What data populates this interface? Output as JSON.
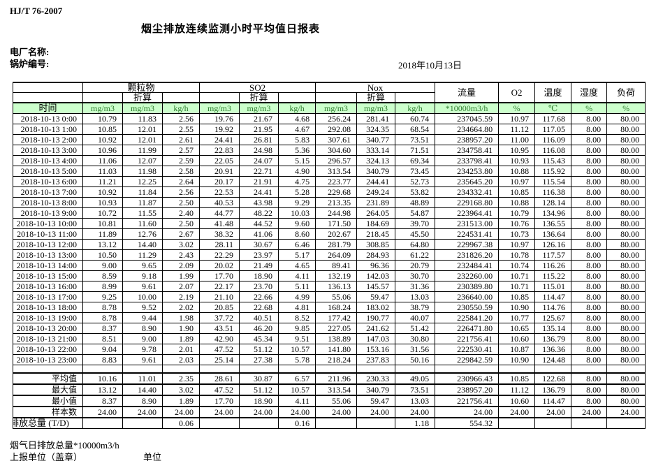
{
  "page": {
    "standard": "HJ/T  76-2007",
    "title": "烟尘排放连续监测小时平均值日报表",
    "plant_label": "电厂名称:",
    "boiler_label": "锅炉编号:",
    "date": "2018年10月13日",
    "footnote": "烟气日排放总量*10000m3/h",
    "report_unit_label": "上报单位（盖章）",
    "unit_label": "单位"
  },
  "colors": {
    "header_green_bg": "#ccffcc",
    "header_green_text": "#2e7d2e",
    "border": "#000000"
  },
  "table": {
    "columns": {
      "time": "时间",
      "converted_label": "折算",
      "groups": [
        {
          "label": "颗粒物"
        },
        {
          "label": "SO2"
        },
        {
          "label": "Nox"
        }
      ],
      "group_units": [
        "mg/m3",
        "mg/m3",
        "kg/h"
      ],
      "flow": {
        "label": "流量",
        "unit": "*10000m3/h"
      },
      "o2": {
        "label": "O2",
        "unit": "%"
      },
      "temperature": {
        "label": "温度",
        "unit": "℃"
      },
      "humidity": {
        "label": "湿度",
        "unit": "%"
      },
      "load": {
        "label": "负荷",
        "unit": "%"
      }
    },
    "rows": [
      {
        "time": "2018-10-13 0:00",
        "values": [
          "10.79",
          "11.83",
          "2.56",
          "19.76",
          "21.67",
          "4.68",
          "256.24",
          "281.41",
          "60.74",
          "237045.59",
          "10.97",
          "117.68",
          "8.00",
          "80.00"
        ]
      },
      {
        "time": "2018-10-13 1:00",
        "values": [
          "10.85",
          "12.01",
          "2.55",
          "19.92",
          "21.95",
          "4.67",
          "292.08",
          "324.35",
          "68.54",
          "234664.80",
          "11.12",
          "117.05",
          "8.00",
          "80.00"
        ]
      },
      {
        "time": "2018-10-13 2:00",
        "values": [
          "10.92",
          "12.01",
          "2.61",
          "24.41",
          "26.81",
          "5.83",
          "307.61",
          "340.77",
          "73.51",
          "238957.20",
          "11.00",
          "116.09",
          "8.00",
          "80.00"
        ]
      },
      {
        "time": "2018-10-13 3:00",
        "values": [
          "10.96",
          "11.99",
          "2.57",
          "22.83",
          "24.98",
          "5.36",
          "304.60",
          "333.14",
          "71.51",
          "234758.41",
          "10.95",
          "116.08",
          "8.00",
          "80.00"
        ]
      },
      {
        "time": "2018-10-13 4:00",
        "values": [
          "11.06",
          "12.07",
          "2.59",
          "22.05",
          "24.07",
          "5.15",
          "296.57",
          "324.13",
          "69.34",
          "233798.41",
          "10.93",
          "115.43",
          "8.00",
          "80.00"
        ]
      },
      {
        "time": "2018-10-13 5:00",
        "values": [
          "11.03",
          "11.98",
          "2.58",
          "20.91",
          "22.71",
          "4.90",
          "313.54",
          "340.79",
          "73.45",
          "234253.80",
          "10.88",
          "115.92",
          "8.00",
          "80.00"
        ]
      },
      {
        "time": "2018-10-13 6:00",
        "values": [
          "11.21",
          "12.25",
          "2.64",
          "20.17",
          "21.91",
          "4.75",
          "223.77",
          "244.41",
          "52.73",
          "235645.20",
          "10.97",
          "115.54",
          "8.00",
          "80.00"
        ]
      },
      {
        "time": "2018-10-13 7:00",
        "values": [
          "10.92",
          "11.84",
          "2.56",
          "22.53",
          "24.41",
          "5.28",
          "229.68",
          "249.24",
          "53.82",
          "234332.41",
          "10.85",
          "116.38",
          "8.00",
          "80.00"
        ]
      },
      {
        "time": "2018-10-13 8:00",
        "values": [
          "10.93",
          "11.87",
          "2.50",
          "40.53",
          "43.98",
          "9.29",
          "213.35",
          "231.89",
          "48.89",
          "229168.80",
          "10.88",
          "128.14",
          "8.00",
          "80.00"
        ]
      },
      {
        "time": "2018-10-13 9:00",
        "values": [
          "10.72",
          "11.55",
          "2.40",
          "44.77",
          "48.22",
          "10.03",
          "244.98",
          "264.05",
          "54.87",
          "223964.41",
          "10.79",
          "134.96",
          "8.00",
          "80.00"
        ]
      },
      {
        "time": "2018-10-13 10:00",
        "values": [
          "10.81",
          "11.60",
          "2.50",
          "41.48",
          "44.52",
          "9.60",
          "171.50",
          "184.69",
          "39.70",
          "231513.00",
          "10.76",
          "136.55",
          "8.00",
          "80.00"
        ]
      },
      {
        "time": "2018-10-13 11:00",
        "values": [
          "11.89",
          "12.76",
          "2.67",
          "38.32",
          "41.06",
          "8.60",
          "202.67",
          "218.45",
          "45.50",
          "224531.41",
          "10.73",
          "136.64",
          "8.00",
          "80.00"
        ]
      },
      {
        "time": "2018-10-13 12:00",
        "values": [
          "13.12",
          "14.40",
          "3.02",
          "28.11",
          "30.67",
          "6.46",
          "281.79",
          "308.85",
          "64.80",
          "229967.38",
          "10.97",
          "126.16",
          "8.00",
          "80.00"
        ]
      },
      {
        "time": "2018-10-13 13:00",
        "values": [
          "10.50",
          "11.29",
          "2.43",
          "22.29",
          "23.97",
          "5.17",
          "264.09",
          "284.93",
          "61.22",
          "231826.20",
          "10.78",
          "117.57",
          "8.00",
          "80.00"
        ]
      },
      {
        "time": "2018-10-13 14:00",
        "values": [
          "9.00",
          "9.65",
          "2.09",
          "20.02",
          "21.49",
          "4.65",
          "89.41",
          "96.36",
          "20.79",
          "232484.41",
          "10.74",
          "116.26",
          "8.00",
          "80.00"
        ]
      },
      {
        "time": "2018-10-13 15:00",
        "values": [
          "8.59",
          "9.18",
          "1.99",
          "17.70",
          "18.90",
          "4.11",
          "132.19",
          "142.03",
          "30.70",
          "232260.00",
          "10.71",
          "115.22",
          "8.00",
          "80.00"
        ]
      },
      {
        "time": "2018-10-13 16:00",
        "values": [
          "8.99",
          "9.61",
          "2.07",
          "22.17",
          "23.70",
          "5.11",
          "136.13",
          "145.57",
          "31.36",
          "230389.80",
          "10.71",
          "115.01",
          "8.00",
          "80.00"
        ]
      },
      {
        "time": "2018-10-13 17:00",
        "values": [
          "9.25",
          "10.00",
          "2.19",
          "21.10",
          "22.66",
          "4.99",
          "55.06",
          "59.47",
          "13.03",
          "236640.00",
          "10.85",
          "114.47",
          "8.00",
          "80.00"
        ]
      },
      {
        "time": "2018-10-13 18:00",
        "values": [
          "8.78",
          "9.52",
          "2.02",
          "20.85",
          "22.68",
          "4.81",
          "168.24",
          "183.02",
          "38.79",
          "230550.59",
          "10.90",
          "114.76",
          "8.00",
          "80.00"
        ]
      },
      {
        "time": "2018-10-13 19:00",
        "values": [
          "8.78",
          "9.44",
          "1.98",
          "37.72",
          "40.51",
          "8.52",
          "177.42",
          "190.77",
          "40.07",
          "225841.20",
          "10.77",
          "125.67",
          "8.00",
          "80.00"
        ]
      },
      {
        "time": "2018-10-13 20:00",
        "values": [
          "8.37",
          "8.90",
          "1.90",
          "43.51",
          "46.20",
          "9.85",
          "227.05",
          "241.62",
          "51.42",
          "226471.80",
          "10.65",
          "135.14",
          "8.00",
          "80.00"
        ]
      },
      {
        "time": "2018-10-13 21:00",
        "values": [
          "8.51",
          "9.00",
          "1.89",
          "42.90",
          "45.34",
          "9.51",
          "138.89",
          "147.03",
          "30.80",
          "221756.41",
          "10.60",
          "136.79",
          "8.00",
          "80.00"
        ]
      },
      {
        "time": "2018-10-13 22:00",
        "values": [
          "9.04",
          "9.78",
          "2.01",
          "47.52",
          "51.12",
          "10.57",
          "141.80",
          "153.16",
          "31.56",
          "222530.41",
          "10.87",
          "136.36",
          "8.00",
          "80.00"
        ]
      },
      {
        "time": "2018-10-13 23:00",
        "values": [
          "8.83",
          "9.61",
          "2.03",
          "25.14",
          "27.38",
          "5.78",
          "218.24",
          "237.83",
          "50.16",
          "229842.59",
          "10.90",
          "124.48",
          "8.00",
          "80.00"
        ]
      }
    ],
    "summary": [
      {
        "label": "平均值",
        "values": [
          "10.16",
          "11.01",
          "2.35",
          "28.61",
          "30.87",
          "6.57",
          "211.96",
          "230.33",
          "49.05",
          "230966.43",
          "10.85",
          "122.68",
          "8.00",
          "80.00"
        ]
      },
      {
        "label": "最大值",
        "values": [
          "13.12",
          "14.40",
          "3.02",
          "47.52",
          "51.12",
          "10.57",
          "313.54",
          "340.79",
          "73.51",
          "238957.20",
          "11.12",
          "136.79",
          "8.00",
          "80.00"
        ]
      },
      {
        "label": "最小值",
        "values": [
          "8.37",
          "8.90",
          "1.89",
          "17.70",
          "18.90",
          "4.11",
          "55.06",
          "59.47",
          "13.03",
          "221756.41",
          "10.60",
          "114.47",
          "8.00",
          "80.00"
        ]
      },
      {
        "label": "样本数",
        "values": [
          "24.00",
          "24.00",
          "24.00",
          "24.00",
          "24.00",
          "24.00",
          "24.00",
          "24.00",
          "24.00",
          "24.00",
          "24.00",
          "24.00",
          "24.00",
          "24.00"
        ]
      },
      {
        "label": "日排放总量 (T/D)",
        "overflow": true,
        "values": [
          "",
          "",
          "0.06",
          "",
          "",
          "0.16",
          "",
          "",
          "1.18",
          "554.32",
          "",
          "",
          "",
          ""
        ]
      }
    ]
  }
}
